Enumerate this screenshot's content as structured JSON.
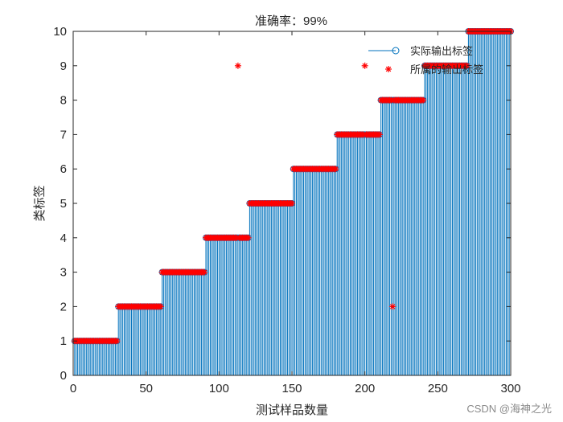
{
  "chart_data": {
    "type": "stem",
    "title": "准确率：99%",
    "xlabel": "测试样品数量",
    "ylabel": "类标签",
    "xlim": [
      0,
      300
    ],
    "ylim": [
      0,
      10
    ],
    "xticks": [
      "0",
      "50",
      "100",
      "150",
      "200",
      "250",
      "300"
    ],
    "yticks": [
      "0",
      "1",
      "2",
      "3",
      "4",
      "5",
      "6",
      "7",
      "8",
      "9",
      "10"
    ],
    "legend_position": "top-right",
    "series": [
      {
        "name": "实际输出标签",
        "marker": "circle",
        "style": "stem",
        "color": "#0072BD",
        "description_of_values": "class label per sample",
        "groups": [
          {
            "x_start": 1,
            "x_end": 30,
            "value": 1
          },
          {
            "x_start": 31,
            "x_end": 60,
            "value": 2
          },
          {
            "x_start": 61,
            "x_end": 90,
            "value": 3
          },
          {
            "x_start": 91,
            "x_end": 120,
            "value": 4
          },
          {
            "x_start": 121,
            "x_end": 150,
            "value": 5
          },
          {
            "x_start": 151,
            "x_end": 180,
            "value": 6
          },
          {
            "x_start": 181,
            "x_end": 210,
            "value": 7
          },
          {
            "x_start": 211,
            "x_end": 240,
            "value": 8
          },
          {
            "x_start": 241,
            "x_end": 270,
            "value": 9
          },
          {
            "x_start": 271,
            "x_end": 300,
            "value": 10
          }
        ]
      },
      {
        "name": "所属的输出标签",
        "marker": "asterisk",
        "style": "marker",
        "color": "#FF0000",
        "groups": [
          {
            "x_start": 1,
            "x_end": 30,
            "value": 1
          },
          {
            "x_start": 31,
            "x_end": 60,
            "value": 2
          },
          {
            "x_start": 61,
            "x_end": 90,
            "value": 3
          },
          {
            "x_start": 91,
            "x_end": 120,
            "value": 4
          },
          {
            "x_start": 121,
            "x_end": 150,
            "value": 5
          },
          {
            "x_start": 151,
            "x_end": 180,
            "value": 6
          },
          {
            "x_start": 181,
            "x_end": 210,
            "value": 7
          },
          {
            "x_start": 211,
            "x_end": 240,
            "value": 8
          },
          {
            "x_start": 241,
            "x_end": 270,
            "value": 9
          },
          {
            "x_start": 271,
            "x_end": 300,
            "value": 10
          }
        ],
        "overrides": [
          {
            "x": 113,
            "value": 9
          },
          {
            "x": 200,
            "value": 9
          },
          {
            "x": 219,
            "value": 2
          }
        ]
      }
    ]
  },
  "watermark": "CSDN @海神之光"
}
